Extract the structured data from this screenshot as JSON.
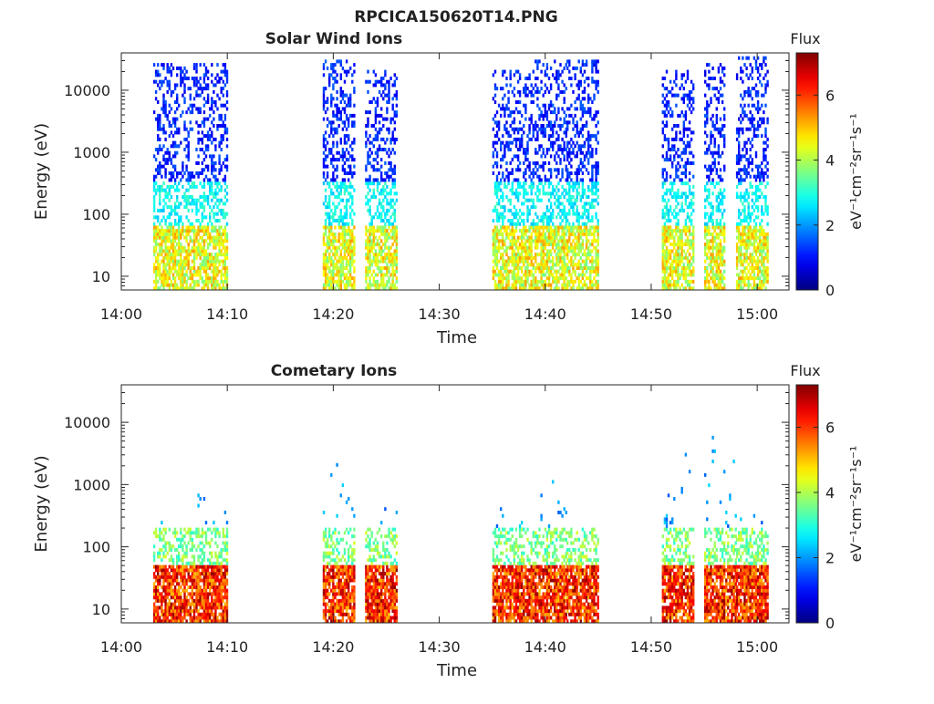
{
  "figure_title": "RPCICA150620T14.PNG",
  "chart_data": [
    {
      "type": "heatmap",
      "title": "Solar Wind Ions",
      "xlabel": "Time",
      "ylabel": "Energy (eV)",
      "y_scale": "log",
      "ylim": [
        6,
        40000
      ],
      "xlim": [
        "14:00",
        "15:03"
      ],
      "x_ticks": [
        "14:00",
        "14:10",
        "14:20",
        "14:30",
        "14:40",
        "14:50",
        "15:00"
      ],
      "y_ticks": [
        "10",
        "100",
        "1000",
        "10000"
      ],
      "colorbar": {
        "title": "Flux",
        "label": "eV⁻¹cm⁻²sr⁻¹s⁻¹",
        "ticks": [
          "0",
          "2",
          "4",
          "6"
        ],
        "range": [
          0,
          7.3
        ],
        "colormap": "jet"
      },
      "bursts": [
        {
          "start": "14:03",
          "end": "14:06",
          "e_min": 6,
          "e_max": 25000
        },
        {
          "start": "14:07",
          "end": "14:09",
          "e_min": 6,
          "e_max": 25000
        },
        {
          "start": "14:19",
          "end": "14:21",
          "e_min": 6,
          "e_max": 30000
        },
        {
          "start": "14:23",
          "end": "14:25",
          "e_min": 6,
          "e_max": 20000
        },
        {
          "start": "14:35",
          "end": "14:38",
          "e_min": 6,
          "e_max": 20000
        },
        {
          "start": "14:39",
          "end": "14:41",
          "e_min": 6,
          "e_max": 30000
        },
        {
          "start": "14:42",
          "end": "14:44",
          "e_min": 6,
          "e_max": 30000
        },
        {
          "start": "14:51",
          "end": "14:53",
          "e_min": 6,
          "e_max": 20000
        },
        {
          "start": "14:55",
          "end": "14:56",
          "e_min": 6,
          "e_max": 25000
        },
        {
          "start": "14:58",
          "end": "15:00",
          "e_min": 6,
          "e_max": 35000
        }
      ]
    },
    {
      "type": "heatmap",
      "title": "Cometary Ions",
      "xlabel": "Time",
      "ylabel": "Energy (eV)",
      "y_scale": "log",
      "ylim": [
        6,
        40000
      ],
      "xlim": [
        "14:00",
        "15:03"
      ],
      "x_ticks": [
        "14:00",
        "14:10",
        "14:20",
        "14:30",
        "14:40",
        "14:50",
        "15:00"
      ],
      "y_ticks": [
        "10",
        "100",
        "1000",
        "10000"
      ],
      "colorbar": {
        "title": "Flux",
        "label": "eV⁻¹cm⁻²sr⁻¹s⁻¹",
        "ticks": [
          "0",
          "2",
          "4",
          "6"
        ],
        "range": [
          0,
          7.3
        ],
        "colormap": "jet"
      },
      "bursts": [
        {
          "start": "14:03",
          "end": "14:06",
          "e_min": 6,
          "e_max": 300
        },
        {
          "start": "14:07",
          "end": "14:09",
          "e_min": 6,
          "e_max": 1500
        },
        {
          "start": "14:19",
          "end": "14:21",
          "e_min": 6,
          "e_max": 4000
        },
        {
          "start": "14:23",
          "end": "14:25",
          "e_min": 6,
          "e_max": 700
        },
        {
          "start": "14:35",
          "end": "14:38",
          "e_min": 6,
          "e_max": 900
        },
        {
          "start": "14:39",
          "end": "14:41",
          "e_min": 6,
          "e_max": 2500
        },
        {
          "start": "14:42",
          "end": "14:44",
          "e_min": 6,
          "e_max": 300
        },
        {
          "start": "14:51",
          "end": "14:53",
          "e_min": 6,
          "e_max": 4000
        },
        {
          "start": "14:55",
          "end": "14:57",
          "e_min": 6,
          "e_max": 12000
        },
        {
          "start": "14:58",
          "end": "15:00",
          "e_min": 6,
          "e_max": 500
        }
      ]
    }
  ]
}
